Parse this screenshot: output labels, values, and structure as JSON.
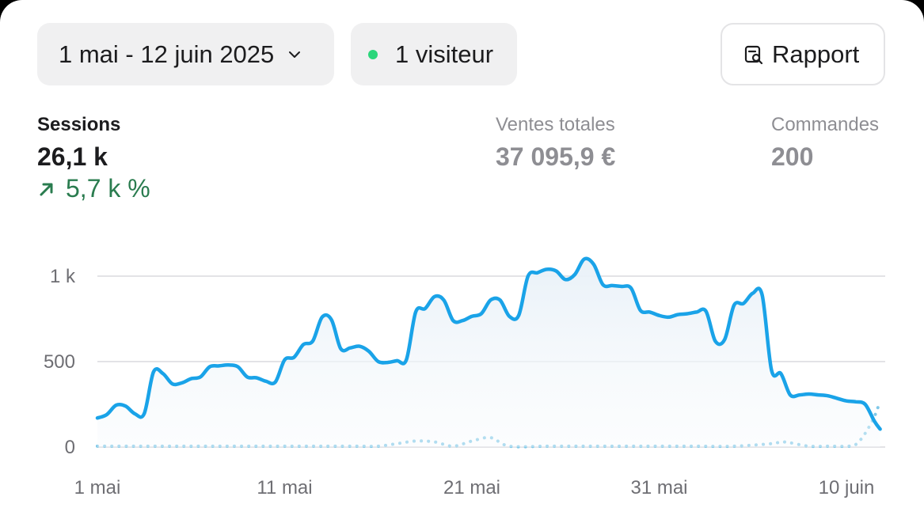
{
  "header": {
    "date_range": "1 mai - 12 juin 2025",
    "visitors": "1 visiteur",
    "report": "Rapport"
  },
  "metrics": {
    "sessions": {
      "label": "Sessions",
      "value": "26,1 k",
      "change": "5,7 k %"
    },
    "sales": {
      "label": "Ventes totales",
      "value": "37 095,9 €"
    },
    "orders": {
      "label": "Commandes",
      "value": "200"
    }
  },
  "colors": {
    "primary_line": "#1aa3e8",
    "comparison_line": "#7fc8e8",
    "positive": "#2a7c4f",
    "live_dot": "#2bd67b"
  },
  "chart_data": {
    "type": "line",
    "x_start": "1 mai",
    "x_ticks": [
      "1 mai",
      "11 mai",
      "21 mai",
      "31 mai",
      "10 juin"
    ],
    "y_ticks": [
      "0",
      "500",
      "1 k"
    ],
    "ylim": [
      0,
      1050
    ],
    "grid": true,
    "series": [
      {
        "style": "solid-area",
        "x": [
          0,
          0.5,
          1,
          1.5,
          2,
          2.5,
          3,
          3.5,
          4,
          4.5,
          5,
          5.5,
          6,
          6.5,
          7,
          7.5,
          8,
          8.5,
          9,
          9.5,
          10,
          10.5,
          11,
          11.5,
          12,
          12.5,
          13,
          13.5,
          14,
          14.5,
          15,
          15.5,
          16,
          16.5,
          17,
          17.5,
          18,
          18.5,
          19,
          19.5,
          20,
          20.5,
          21,
          21.5,
          22,
          22.5,
          23,
          23.5,
          24,
          24.5,
          25,
          25.5,
          26,
          26.5,
          27,
          27.5,
          28,
          28.5,
          29,
          29.5,
          30,
          30.5,
          31,
          31.5,
          32,
          32.5,
          33,
          33.5,
          34,
          34.5,
          35,
          35.5,
          36,
          36.5,
          37,
          37.5,
          38,
          38.5,
          39,
          39.5,
          40,
          40.5,
          41,
          41.5,
          41.8
        ],
        "values": [
          170,
          190,
          245,
          240,
          195,
          195,
          440,
          430,
          370,
          375,
          400,
          410,
          470,
          475,
          480,
          470,
          410,
          405,
          385,
          380,
          510,
          525,
          600,
          620,
          760,
          745,
          575,
          580,
          590,
          560,
          500,
          495,
          505,
          510,
          790,
          810,
          880,
          860,
          740,
          740,
          765,
          780,
          860,
          860,
          765,
          770,
          1000,
          1020,
          1040,
          1030,
          980,
          1010,
          1100,
          1070,
          950,
          945,
          940,
          930,
          800,
          790,
          770,
          760,
          775,
          780,
          790,
          795,
          620,
          630,
          830,
          840,
          900,
          890,
          450,
          430,
          305,
          305,
          310,
          305,
          300,
          285,
          270,
          265,
          250,
          150,
          105
        ]
      },
      {
        "style": "dotted",
        "x": [
          0,
          2,
          4,
          6,
          8,
          10,
          12,
          14,
          15,
          16,
          17,
          18,
          19,
          20,
          21,
          22,
          24,
          26,
          28,
          30,
          32,
          34,
          36,
          36.5,
          37,
          38,
          39,
          40,
          40.5,
          41,
          41.5,
          41.8
        ],
        "values": [
          5,
          5,
          5,
          5,
          5,
          5,
          5,
          5,
          5,
          20,
          35,
          30,
          5,
          35,
          55,
          5,
          5,
          5,
          5,
          5,
          5,
          5,
          20,
          30,
          25,
          5,
          5,
          5,
          15,
          80,
          180,
          270
        ]
      }
    ]
  }
}
